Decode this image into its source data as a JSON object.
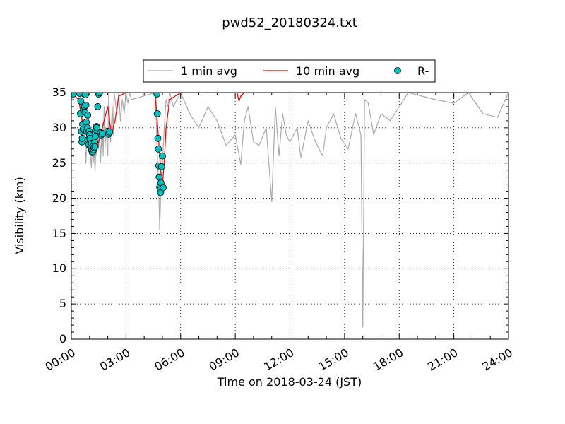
{
  "chart_data": {
    "type": "line",
    "title": "pwd52_20180324.txt",
    "xlabel": "Time on 2018-03-24 (JST)",
    "ylabel": "Visibility (km)",
    "xlim_hours": [
      0,
      24
    ],
    "ylim": [
      0,
      35
    ],
    "x_ticks": [
      "00:00",
      "03:00",
      "06:00",
      "09:00",
      "12:00",
      "15:00",
      "18:00",
      "21:00",
      "24:00"
    ],
    "y_ticks": [
      "0",
      "5",
      "10",
      "15",
      "20",
      "25",
      "30",
      "35"
    ],
    "grid": true,
    "legend_position": "top-center",
    "series": [
      {
        "name": "1 min avg",
        "type": "line",
        "color": "#aaaaaa",
        "x_hours": [
          0.0,
          0.45,
          0.55,
          0.6,
          0.7,
          0.8,
          0.9,
          0.95,
          1.0,
          1.05,
          1.1,
          1.15,
          1.2,
          1.25,
          1.3,
          1.35,
          1.4,
          1.45,
          1.5,
          1.55,
          1.6,
          1.65,
          1.7,
          1.75,
          1.8,
          1.85,
          1.9,
          2.0,
          2.05,
          2.15,
          2.25,
          2.3,
          2.35,
          2.4,
          2.5,
          2.6,
          2.7,
          2.8,
          2.9,
          3.0,
          3.1,
          3.2,
          3.3,
          4.6,
          4.65,
          4.7,
          4.75,
          4.8,
          4.85,
          4.9,
          4.95,
          5.0,
          5.1,
          5.2,
          5.3,
          5.4,
          5.6,
          5.8,
          6.0,
          6.5,
          7.0,
          7.5,
          8.0,
          8.5,
          9.0,
          9.3,
          9.5,
          9.7,
          10.0,
          10.3,
          10.7,
          11.0,
          11.2,
          11.4,
          11.6,
          11.8,
          12.0,
          12.4,
          12.6,
          13.0,
          13.4,
          13.8,
          14.0,
          14.4,
          14.8,
          15.2,
          15.6,
          15.9,
          16.0,
          16.1,
          16.3,
          16.6,
          17.0,
          17.5,
          18.5,
          20.0,
          21.0,
          21.8,
          22.6,
          23.4,
          24.0
        ],
        "values": [
          35.0,
          35.0,
          32.0,
          28.0,
          30.0,
          25.0,
          32.0,
          29.0,
          27.0,
          26.0,
          24.3,
          28.0,
          25.0,
          27.0,
          23.8,
          27.5,
          26.0,
          29.0,
          27.0,
          30.0,
          25.0,
          28.0,
          31.0,
          26.0,
          33.0,
          27.0,
          30.0,
          26.0,
          35.0,
          28.0,
          33.0,
          29.0,
          35.0,
          34.0,
          32.0,
          35.0,
          31.0,
          34.0,
          32.0,
          35.0,
          33.5,
          35.0,
          34.0,
          35.0,
          32.0,
          28.0,
          24.0,
          21.0,
          15.5,
          20.0,
          22.0,
          25.0,
          30.0,
          34.0,
          33.0,
          35.0,
          33.0,
          34.0,
          35.0,
          32.0,
          30.0,
          33.0,
          31.0,
          27.5,
          29.0,
          24.8,
          31.0,
          33.0,
          28.0,
          27.5,
          30.0,
          19.5,
          33.0,
          26.0,
          32.0,
          29.0,
          28.0,
          30.0,
          25.8,
          31.0,
          28.0,
          26.0,
          30.0,
          32.0,
          28.5,
          27.0,
          32.0,
          29.0,
          1.7,
          34.0,
          33.5,
          29.0,
          32.0,
          31.0,
          35.0,
          34.0,
          33.5,
          35.0,
          32.0,
          31.5,
          35.0
        ]
      },
      {
        "name": "10 min avg",
        "type": "line",
        "color": "#ff0000",
        "x_hours": [
          0.0,
          0.4,
          0.6,
          0.8,
          1.0,
          1.2,
          1.4,
          1.6,
          1.8,
          2.0,
          2.2,
          2.4,
          2.6,
          3.0,
          4.6,
          4.8,
          4.9,
          5.0,
          5.1,
          5.2,
          5.4,
          6.0,
          9.1,
          9.2,
          9.3,
          9.5,
          24.0
        ],
        "values": [
          35.0,
          34.0,
          31.0,
          29.5,
          28.5,
          27.5,
          27.0,
          29.0,
          31.0,
          33.0,
          29.0,
          31.0,
          34.5,
          35.0,
          35.0,
          28.0,
          24.0,
          22.0,
          25.0,
          30.0,
          34.0,
          35.0,
          35.0,
          33.8,
          34.5,
          35.0,
          35.0
        ]
      },
      {
        "name": "R-",
        "type": "scatter",
        "color": "#00c0c0",
        "x_hours": [
          0.05,
          0.1,
          0.4,
          0.45,
          0.5,
          0.52,
          0.55,
          0.58,
          0.6,
          0.62,
          0.65,
          0.68,
          0.7,
          0.72,
          0.75,
          0.78,
          0.8,
          0.82,
          0.85,
          0.88,
          0.9,
          0.92,
          0.95,
          0.98,
          1.0,
          1.02,
          1.05,
          1.08,
          1.1,
          1.12,
          1.15,
          1.18,
          1.2,
          1.22,
          1.25,
          1.28,
          1.3,
          1.32,
          1.35,
          1.38,
          1.4,
          1.45,
          1.5,
          1.55,
          1.6,
          1.65,
          1.7,
          2.0,
          2.05,
          2.1,
          4.7,
          4.72,
          4.75,
          4.78,
          4.8,
          4.82,
          4.85,
          4.88,
          4.9,
          4.92,
          4.95,
          5.0,
          5.05
        ],
        "values": [
          35.0,
          34.8,
          35.0,
          34.9,
          32.0,
          33.8,
          29.5,
          28.0,
          28.5,
          30.5,
          29.8,
          32.5,
          34.8,
          33.0,
          32.2,
          34.7,
          33.2,
          30.8,
          29.5,
          30.0,
          31.8,
          28.3,
          27.6,
          29.5,
          29.0,
          28.5,
          27.3,
          27.5,
          27.8,
          26.8,
          26.5,
          26.6,
          27.4,
          26.9,
          27.2,
          28.0,
          27.3,
          28.8,
          29.7,
          30.2,
          30.0,
          33.0,
          34.8,
          35.0,
          29.3,
          29.0,
          29.2,
          29.5,
          29.1,
          29.4,
          34.8,
          32.0,
          28.5,
          27.0,
          24.6,
          23.0,
          21.6,
          21.2,
          20.8,
          22.2,
          24.5,
          26.0,
          21.5
        ]
      }
    ]
  }
}
